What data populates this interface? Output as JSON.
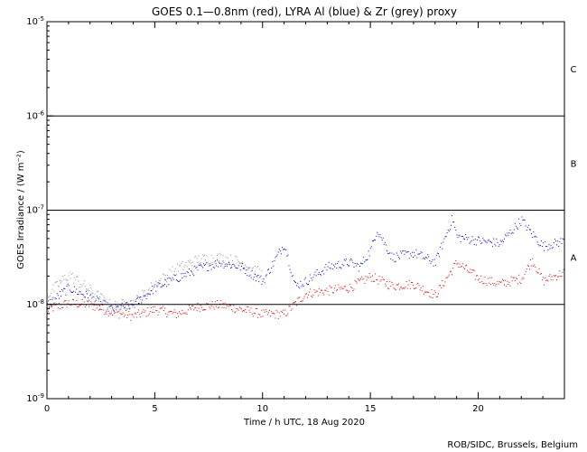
{
  "chart_data": {
    "type": "scatter",
    "title": "GOES 0.1—0.8nm (red), LYRA Al (blue) & Zr (grey) proxy",
    "xlabel": "Time / h UTC, 18 Aug 2020",
    "ylabel": "GOES Irradiance / (W m⁻²)",
    "xlim": [
      0,
      24
    ],
    "ylim_log10": [
      -9,
      -5
    ],
    "yscale": "log",
    "x_ticks": [
      0,
      5,
      10,
      15,
      20
    ],
    "x_tick_labels": [
      "0",
      "5",
      "10",
      "15",
      "20"
    ],
    "y_tick_labels": [
      {
        "base": "10",
        "exp": "-9",
        "value": -9
      },
      {
        "base": "10",
        "exp": "-8",
        "value": -8
      },
      {
        "base": "10",
        "exp": "-7",
        "value": -7
      },
      {
        "base": "10",
        "exp": "-6",
        "value": -6
      },
      {
        "base": "10",
        "exp": "-5",
        "value": -5
      }
    ],
    "flare_class_lines": [
      -8,
      -7,
      -6
    ],
    "flare_classes": [
      {
        "label": "A",
        "log10_low": -8,
        "log10_high": -7
      },
      {
        "label": "B",
        "log10_low": -7,
        "log10_high": -6
      },
      {
        "label": "C",
        "log10_low": -6,
        "log10_high": -5
      }
    ],
    "series": [
      {
        "name": "GOES 0.1-0.8nm",
        "color": "#e00000",
        "x": [
          0,
          1,
          2,
          3,
          4,
          5,
          6,
          7,
          8,
          9,
          10,
          11,
          12,
          13,
          14,
          15,
          15.5,
          16,
          17,
          18,
          18.8,
          19,
          20,
          21,
          22,
          22.5,
          23,
          24
        ],
        "log10_y": [
          -8.05,
          -7.98,
          -8.0,
          -8.08,
          -8.12,
          -8.05,
          -8.1,
          -8.02,
          -8.0,
          -8.05,
          -8.1,
          -8.1,
          -7.88,
          -7.85,
          -7.82,
          -7.7,
          -7.75,
          -7.8,
          -7.78,
          -7.9,
          -7.62,
          -7.55,
          -7.72,
          -7.78,
          -7.72,
          -7.52,
          -7.75,
          -7.65
        ],
        "spread": 0.05
      },
      {
        "name": "LYRA Al proxy",
        "color": "#0000cc",
        "x": [
          0,
          1,
          2,
          3,
          4,
          5,
          6,
          7,
          8,
          9,
          10,
          11,
          11.5,
          12,
          13,
          14,
          14.5,
          15,
          15.3,
          16,
          17,
          18,
          18.8,
          19,
          20,
          21,
          22,
          22.5,
          23,
          24
        ],
        "log10_y": [
          -8.0,
          -7.82,
          -7.92,
          -8.05,
          -8.0,
          -7.82,
          -7.72,
          -7.62,
          -7.55,
          -7.6,
          -7.75,
          -7.35,
          -7.8,
          -7.75,
          -7.6,
          -7.55,
          -7.6,
          -7.42,
          -7.2,
          -7.5,
          -7.45,
          -7.55,
          -7.08,
          -7.28,
          -7.32,
          -7.35,
          -7.1,
          -7.25,
          -7.38,
          -7.32
        ],
        "spread": 0.05
      },
      {
        "name": "LYRA Zr proxy",
        "color": "#909090",
        "x": [
          0,
          1,
          2,
          3,
          4,
          5,
          6,
          7,
          8,
          9,
          10
        ],
        "log10_y": [
          -7.9,
          -7.68,
          -7.85,
          -8.02,
          -7.98,
          -7.78,
          -7.62,
          -7.52,
          -7.5,
          -7.55,
          -7.68
        ],
        "spread": 0.06
      }
    ]
  },
  "footer": {
    "credit": "ROB/SIDC, Brussels, Belgium"
  }
}
